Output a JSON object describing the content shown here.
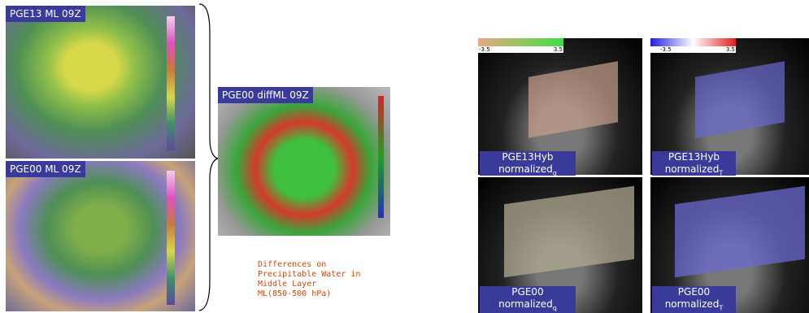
{
  "left_panels": [
    {
      "label": "PGE13 ML 09Z"
    },
    {
      "label": "PGE00 ML 09Z"
    }
  ],
  "diff_panel": {
    "label": "PGE00 diffML 09Z",
    "caption": [
      "Differences on",
      "Precipitable Water in",
      "Middle Layer",
      "ML(850-500 hPa)"
    ]
  },
  "colorbars": [
    {
      "min": -3.5,
      "max": 3.5
    },
    {
      "min": -3.5,
      "max": 3.5
    }
  ],
  "panels_3d": [
    {
      "name": "PGE13Hyb",
      "label": "normalized",
      "subscript": "q"
    },
    {
      "name": "PGE13Hyb",
      "label": "normalized",
      "subscript": "T"
    },
    {
      "name": "PGE00",
      "label": "normalized",
      "subscript": "q"
    },
    {
      "name": "PGE00",
      "label": "normalized",
      "subscript": "T"
    }
  ]
}
